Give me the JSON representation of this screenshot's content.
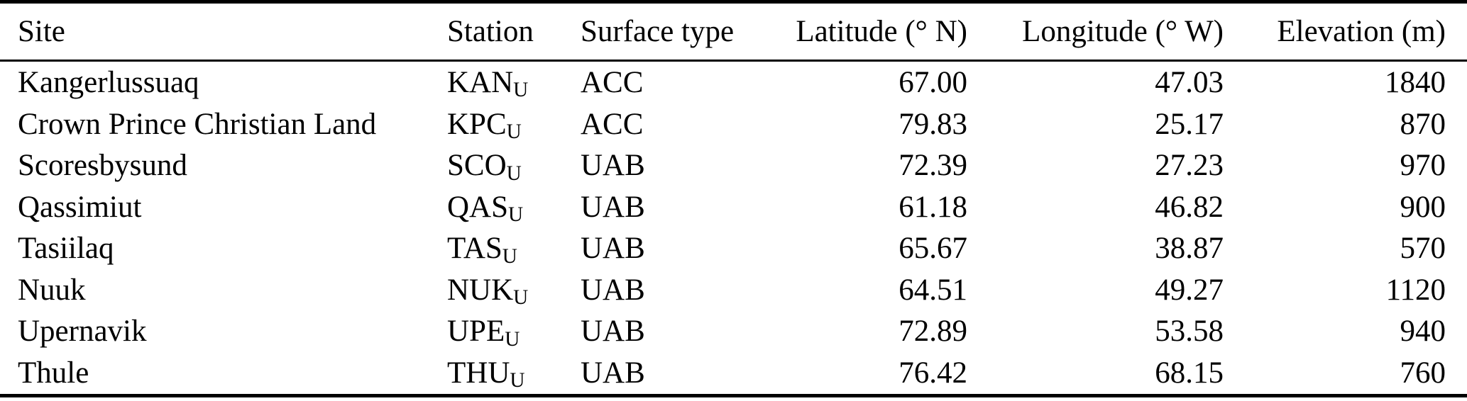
{
  "table": {
    "columns": {
      "site": "Site",
      "station": "Station",
      "surface_type": "Surface type",
      "latitude": "Latitude (° N)",
      "longitude": "Longitude (° W)",
      "elevation": "Elevation (m)"
    },
    "rows": [
      {
        "site": "Kangerlussuaq",
        "station_base": "KAN",
        "station_sub": "U",
        "surface_type": "ACC",
        "latitude": "67.00",
        "longitude": "47.03",
        "elevation": "1840"
      },
      {
        "site": "Crown Prince Christian Land",
        "station_base": "KPC",
        "station_sub": "U",
        "surface_type": "ACC",
        "latitude": "79.83",
        "longitude": "25.17",
        "elevation": "870"
      },
      {
        "site": "Scoresbysund",
        "station_base": "SCO",
        "station_sub": "U",
        "surface_type": "UAB",
        "latitude": "72.39",
        "longitude": "27.23",
        "elevation": "970"
      },
      {
        "site": "Qassimiut",
        "station_base": "QAS",
        "station_sub": "U",
        "surface_type": "UAB",
        "latitude": "61.18",
        "longitude": "46.82",
        "elevation": "900"
      },
      {
        "site": "Tasiilaq",
        "station_base": "TAS",
        "station_sub": "U",
        "surface_type": "UAB",
        "latitude": "65.67",
        "longitude": "38.87",
        "elevation": "570"
      },
      {
        "site": "Nuuk",
        "station_base": "NUK",
        "station_sub": "U",
        "surface_type": "UAB",
        "latitude": "64.51",
        "longitude": "49.27",
        "elevation": "1120"
      },
      {
        "site": "Upernavik",
        "station_base": "UPE",
        "station_sub": "U",
        "surface_type": "UAB",
        "latitude": "72.89",
        "longitude": "53.58",
        "elevation": "940"
      },
      {
        "site": "Thule",
        "station_base": "THU",
        "station_sub": "U",
        "surface_type": "UAB",
        "latitude": "76.42",
        "longitude": "68.15",
        "elevation": "760"
      }
    ],
    "colors": {
      "text": "#000000",
      "background": "#ffffff",
      "rule": "#000000"
    }
  }
}
